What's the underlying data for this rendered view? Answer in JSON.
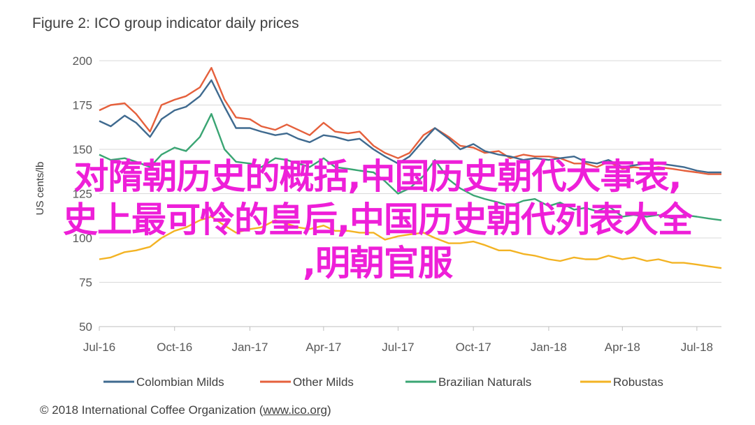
{
  "chart_data": {
    "type": "line",
    "title": "Figure 2: ICO group indicator daily prices",
    "xlabel": "",
    "ylabel": "US cents/lb",
    "ylim": [
      50,
      200
    ],
    "yticks": [
      50,
      75,
      100,
      125,
      150,
      175,
      200
    ],
    "grid": true,
    "legend_position": "bottom",
    "x_range": [
      "2016-07-01",
      "2018-07-31"
    ],
    "xtick_dates": [
      "2016-07-01",
      "2016-10-01",
      "2017-01-01",
      "2017-04-01",
      "2017-07-01",
      "2017-10-01",
      "2018-01-01",
      "2018-04-01",
      "2018-07-01"
    ],
    "xtick_labels": [
      "Jul-16",
      "Oct-16",
      "Jan-17",
      "Apr-17",
      "Jul-17",
      "Oct-17",
      "Jan-18",
      "Apr-18",
      "Jul-18"
    ],
    "x": [
      "2016-07-01",
      "2016-07-15",
      "2016-08-01",
      "2016-08-15",
      "2016-09-01",
      "2016-09-15",
      "2016-10-01",
      "2016-10-15",
      "2016-11-01",
      "2016-11-15",
      "2016-12-01",
      "2016-12-15",
      "2017-01-01",
      "2017-01-15",
      "2017-02-01",
      "2017-02-15",
      "2017-03-01",
      "2017-03-15",
      "2017-04-01",
      "2017-04-15",
      "2017-05-01",
      "2017-05-15",
      "2017-06-01",
      "2017-06-15",
      "2017-07-01",
      "2017-07-15",
      "2017-08-01",
      "2017-08-15",
      "2017-09-01",
      "2017-09-15",
      "2017-10-01",
      "2017-10-15",
      "2017-11-01",
      "2017-11-15",
      "2017-12-01",
      "2017-12-15",
      "2018-01-01",
      "2018-01-15",
      "2018-02-01",
      "2018-02-15",
      "2018-03-01",
      "2018-03-15",
      "2018-04-01",
      "2018-04-15",
      "2018-05-01",
      "2018-05-15",
      "2018-06-01",
      "2018-06-15",
      "2018-07-01",
      "2018-07-15",
      "2018-07-31"
    ],
    "series": [
      {
        "name": "Colombian Milds",
        "color": "#3f6a8f",
        "values": [
          166,
          163,
          169,
          165,
          157,
          167,
          172,
          174,
          180,
          189,
          174,
          162,
          162,
          160,
          158,
          159,
          156,
          154,
          158,
          157,
          155,
          156,
          150,
          146,
          142,
          146,
          155,
          162,
          156,
          150,
          153,
          149,
          147,
          146,
          144,
          145,
          144,
          145,
          146,
          143,
          142,
          144,
          140,
          141,
          142,
          142,
          141,
          140,
          138,
          137,
          137
        ]
      },
      {
        "name": "Other Milds",
        "color": "#e5603c",
        "values": [
          172,
          175,
          176,
          170,
          160,
          175,
          178,
          180,
          185,
          196,
          178,
          168,
          167,
          163,
          161,
          164,
          161,
          158,
          165,
          160,
          159,
          160,
          152,
          148,
          145,
          148,
          158,
          162,
          157,
          152,
          151,
          148,
          149,
          145,
          147,
          146,
          146,
          145,
          142,
          142,
          140,
          143,
          139,
          140,
          139,
          140,
          139,
          138,
          137,
          136,
          136
        ]
      },
      {
        "name": "Brazilian Naturals",
        "color": "#3aa573",
        "values": [
          147,
          144,
          145,
          143,
          140,
          147,
          151,
          149,
          157,
          170,
          150,
          143,
          142,
          140,
          145,
          144,
          142,
          140,
          145,
          140,
          139,
          138,
          137,
          132,
          125,
          128,
          135,
          144,
          133,
          128,
          124,
          122,
          120,
          118,
          121,
          122,
          118,
          120,
          116,
          117,
          115,
          118,
          112,
          113,
          112,
          113,
          111,
          113,
          112,
          111,
          110
        ]
      },
      {
        "name": "Robustas",
        "color": "#f3b323",
        "values": [
          88,
          89,
          92,
          93,
          95,
          100,
          104,
          106,
          110,
          112,
          107,
          103,
          105,
          106,
          110,
          108,
          106,
          105,
          107,
          104,
          104,
          103,
          103,
          99,
          101,
          102,
          103,
          100,
          97,
          97,
          98,
          96,
          93,
          93,
          91,
          90,
          88,
          87,
          89,
          88,
          88,
          90,
          88,
          89,
          87,
          88,
          86,
          86,
          85,
          84,
          83
        ]
      }
    ]
  },
  "overlay": {
    "line1": "对隋朝历史的概括,中国历史朝代大事表,",
    "line2": "史上最可怜的皇后,中国历史朝代列表大全",
    "line3": ",明朝官服"
  },
  "credit": {
    "prefix": "© 2018 International Coffee Organization (",
    "link": "www.ico.org",
    "suffix": ")"
  }
}
